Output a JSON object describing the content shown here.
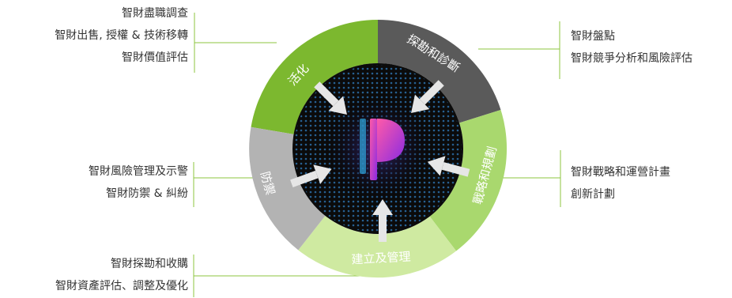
{
  "segments": [
    {
      "id": "activate",
      "label": "活化",
      "color": "#7cb82f"
    },
    {
      "id": "explore",
      "label": "探勘和診斷",
      "color": "#5a5a5a"
    },
    {
      "id": "strategy",
      "label": "戰略和規劃",
      "color": "#a9d86e"
    },
    {
      "id": "build",
      "label": "建立及管理",
      "color": "#cfeaa1"
    },
    {
      "id": "defense",
      "label": "防禦",
      "color": "#b3b3b3"
    }
  ],
  "blocks": {
    "activate": [
      "智財盡職調查",
      "智財出售, 授權 & 技術移轉",
      "智財價值評估"
    ],
    "explore": [
      "智財盤點",
      "智財競爭分析和風險評估"
    ],
    "strategy": [
      "智財戰略和運營計畫",
      "創新計劃"
    ],
    "build": [
      "智財探勘和收購",
      "智財資產評估、調整及優化"
    ],
    "defense": [
      "智財風險管理及示警",
      "智財防禦 & 糾紛"
    ]
  },
  "colors": {
    "leader_line": "#8cc63f",
    "arrow": "#e6e6e6",
    "center": "#0b0b0b",
    "logo_pink": "#e6007e",
    "logo_blue": "#2fa8e0"
  }
}
